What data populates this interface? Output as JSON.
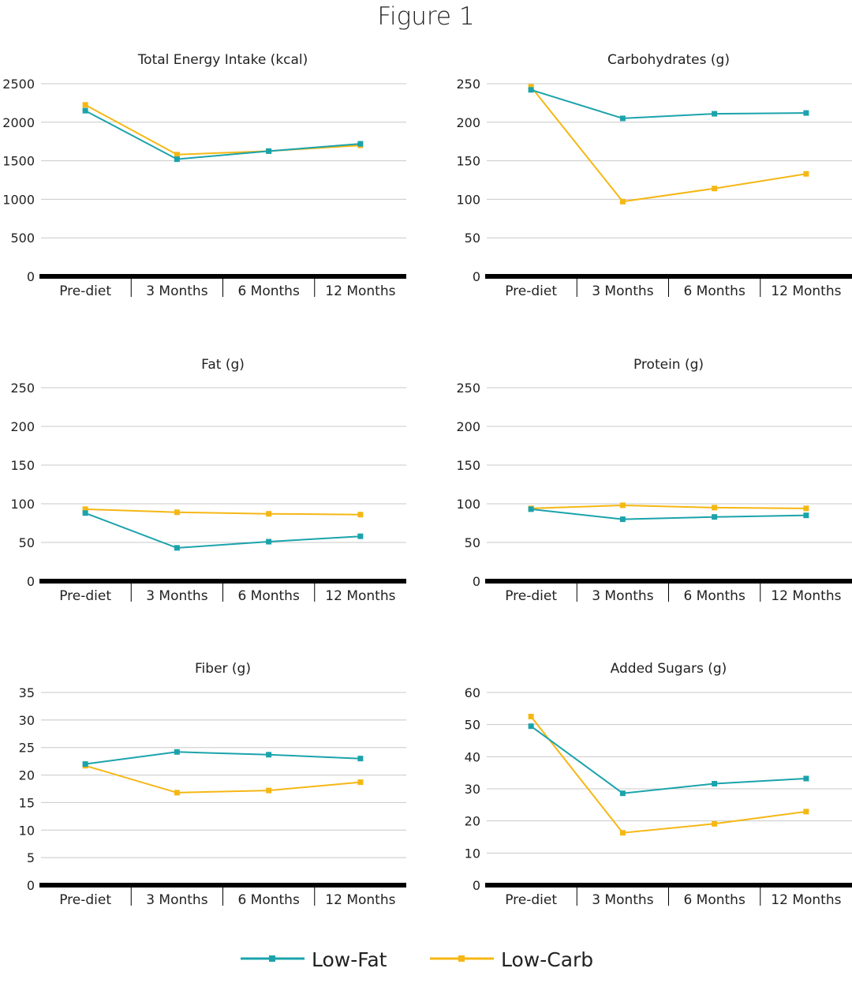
{
  "figure_title": "Figure 1",
  "colors": {
    "low_fat": "#1ba3ac",
    "low_carb": "#f5b714"
  },
  "legend": [
    {
      "name": "Low-Fat",
      "color_key": "low_fat"
    },
    {
      "name": "Low-Carb",
      "color_key": "low_carb"
    }
  ],
  "chart_data": [
    {
      "type": "line",
      "title": "Total Energy Intake (kcal)",
      "categories": [
        "Pre-diet",
        "3 Months",
        "6 Months",
        "12 Months"
      ],
      "ylim": [
        0,
        2500
      ],
      "yticks": [
        0,
        500,
        1000,
        1500,
        2000,
        2500
      ],
      "series": [
        {
          "name": "Low-Fat",
          "values": [
            2150,
            1520,
            1625,
            1720
          ]
        },
        {
          "name": "Low-Carb",
          "values": [
            2225,
            1580,
            1625,
            1700
          ]
        }
      ]
    },
    {
      "type": "line",
      "title": "Carbohydrates (g)",
      "categories": [
        "Pre-diet",
        "3 Months",
        "6 Months",
        "12 Months"
      ],
      "ylim": [
        0,
        250
      ],
      "yticks": [
        0,
        50,
        100,
        150,
        200,
        250
      ],
      "series": [
        {
          "name": "Low-Fat",
          "values": [
            242,
            205,
            211,
            212
          ]
        },
        {
          "name": "Low-Carb",
          "values": [
            246,
            97,
            114,
            133
          ]
        }
      ]
    },
    {
      "type": "line",
      "title": "Fat (g)",
      "categories": [
        "Pre-diet",
        "3 Months",
        "6 Months",
        "12 Months"
      ],
      "ylim": [
        0,
        250
      ],
      "yticks": [
        0,
        50,
        100,
        150,
        200,
        250
      ],
      "series": [
        {
          "name": "Low-Fat",
          "values": [
            88,
            43,
            51,
            58
          ]
        },
        {
          "name": "Low-Carb",
          "values": [
            93,
            89,
            87,
            86
          ]
        }
      ]
    },
    {
      "type": "line",
      "title": "Protein (g)",
      "categories": [
        "Pre-diet",
        "3 Months",
        "6 Months",
        "12 Months"
      ],
      "ylim": [
        0,
        250
      ],
      "yticks": [
        0,
        50,
        100,
        150,
        200,
        250
      ],
      "series": [
        {
          "name": "Low-Fat",
          "values": [
            93,
            80,
            83,
            85
          ]
        },
        {
          "name": "Low-Carb",
          "values": [
            94,
            98,
            95,
            94
          ]
        }
      ]
    },
    {
      "type": "line",
      "title": "Fiber (g)",
      "categories": [
        "Pre-diet",
        "3 Months",
        "6 Months",
        "12 Months"
      ],
      "ylim": [
        0,
        35
      ],
      "yticks": [
        0,
        5,
        10,
        15,
        20,
        25,
        30,
        35
      ],
      "series": [
        {
          "name": "Low-Fat",
          "values": [
            22.0,
            24.2,
            23.7,
            23.0
          ]
        },
        {
          "name": "Low-Carb",
          "values": [
            21.7,
            16.8,
            17.2,
            18.7
          ]
        }
      ]
    },
    {
      "type": "line",
      "title": "Added Sugars (g)",
      "categories": [
        "Pre-diet",
        "3 Months",
        "6 Months",
        "12 Months"
      ],
      "ylim": [
        0,
        60
      ],
      "yticks": [
        0,
        10,
        20,
        30,
        40,
        50,
        60
      ],
      "series": [
        {
          "name": "Low-Fat",
          "values": [
            49.5,
            28.6,
            31.6,
            33.2
          ]
        },
        {
          "name": "Low-Carb",
          "values": [
            52.5,
            16.3,
            19.1,
            22.9
          ]
        }
      ]
    }
  ]
}
